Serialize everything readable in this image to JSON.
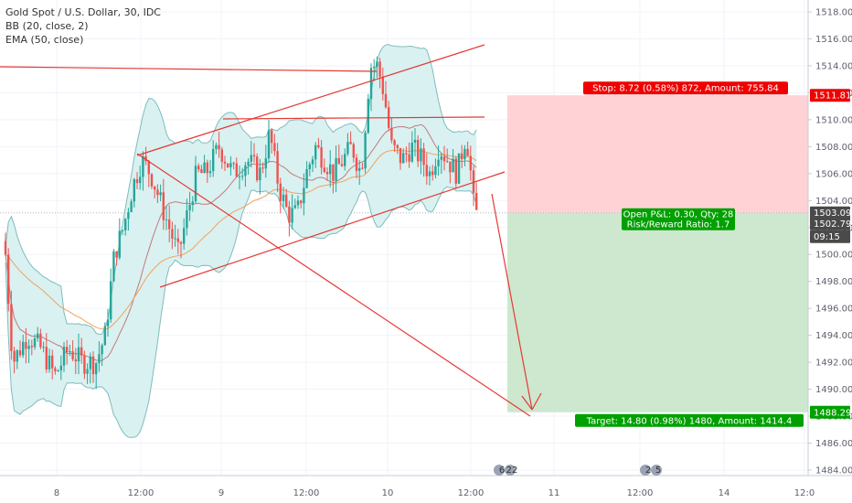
{
  "legend": {
    "symbol": "Gold Spot / U.S. Dollar, 30, IDC",
    "bb": "BB (20, close, 2)",
    "ema": "EMA (50, close)"
  },
  "colors": {
    "up": "#26a69a",
    "down": "#ef5350",
    "bb_fill": "#d9f1f1",
    "bb_line": "#7fbcbc",
    "ema": "#f0a35a",
    "trend": "#e53935",
    "stop_zone": "#ffcdd2",
    "target_zone": "#c8e6c9",
    "price_badge": "#4a4a4a",
    "green_badge": "#00a000",
    "red_badge": "#f00000"
  },
  "chart_data": {
    "type": "candlestick",
    "title": "Gold Spot / U.S. Dollar, 30, IDC",
    "ylim": [
      1483,
      1519
    ],
    "y_ticks": [
      1484,
      1486,
      1488,
      1490,
      1492,
      1494,
      1496,
      1498,
      1500,
      1502,
      1504,
      1506,
      1508,
      1510,
      1512,
      1514,
      1516,
      1518
    ],
    "x_tick_labels": [
      "8",
      "12:00",
      "9",
      "12:00",
      "10",
      "12:00",
      "11",
      "12:00",
      "12:00",
      "14",
      "12:0"
    ],
    "price_labels": {
      "stop": "1511.81",
      "entry": "1503.09",
      "current": "1502.79",
      "countdown": "09:15",
      "target": "1488.29"
    },
    "position": {
      "stop_text": "Stop: 8.72 (0.58%) 872, Amount: 755.84",
      "pnl_text": "Open P&L: 0.30, Qty: 28",
      "rr_text": "Risk/Reward Ratio: 1.7",
      "target_text": "Target: 14.80 (0.98%) 1480, Amount: 1414.4",
      "stop_price": 1511.81,
      "entry_price": 1503.09,
      "target_price": 1488.29
    },
    "events": [
      "6",
      "22",
      "2",
      "5"
    ],
    "indicators": [
      "BB (20, close, 2)",
      "EMA (50, close)"
    ]
  }
}
